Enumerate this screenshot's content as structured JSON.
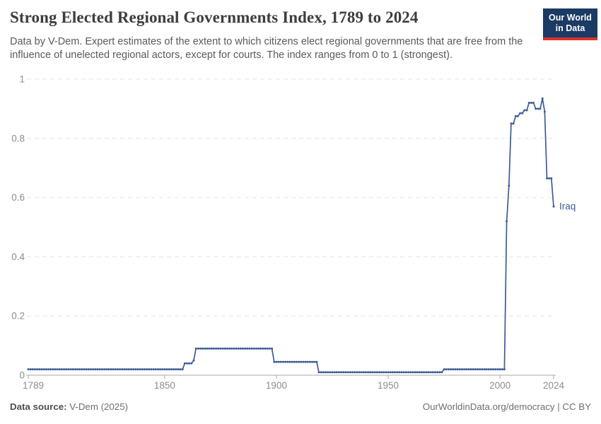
{
  "header": {
    "title": "Strong Elected Regional Governments Index, 1789 to 2024",
    "subtitle": "Data by V-Dem. Expert estimates of the extent to which citizens elect regional governments that are free from the influence of unelected regional actors, except for courts. The index ranges from 0 to 1 (strongest).",
    "logo": {
      "line1": "Our World",
      "line2": "in Data"
    }
  },
  "footer": {
    "source_label": "Data source:",
    "source_value": " V-Dem (2025)",
    "link": "OurWorldinData.org/democracy | CC BY"
  },
  "colors": {
    "line": "#3e5c95",
    "logo_bg": "#1b3a64",
    "logo_bar": "#d7352b",
    "grid": "#e4e4e4",
    "axis": "#a8a8a8",
    "tick_label": "#8c8c8c"
  },
  "chart_data": {
    "type": "line",
    "title": "Strong Elected Regional Governments Index, 1789 to 2024",
    "xlabel": "",
    "ylabel": "",
    "xlim": [
      1789,
      2024
    ],
    "ylim": [
      0,
      1
    ],
    "grid": "horizontal-dashed",
    "legend_position": "end-of-line-label",
    "x_ticks": [
      1789,
      1850,
      1900,
      1950,
      2000,
      2024
    ],
    "y_ticks": [
      {
        "value": 0,
        "label": "0"
      },
      {
        "value": 0.2,
        "label": "0.2"
      },
      {
        "value": 0.4,
        "label": "0.4"
      },
      {
        "value": 0.6,
        "label": "0.6"
      },
      {
        "value": 0.8,
        "label": "0.8"
      },
      {
        "value": 1,
        "label": "1"
      }
    ],
    "line_color": "#3e5c95",
    "series": [
      {
        "name": "Iraq",
        "segments": [
          {
            "from": 1789,
            "to": 1858,
            "value": 0.02
          },
          {
            "from": 1859,
            "to": 1862,
            "value": 0.04
          },
          {
            "from": 1863,
            "to": 1863,
            "value": 0.05
          },
          {
            "from": 1864,
            "to": 1898,
            "value": 0.09
          },
          {
            "from": 1899,
            "to": 1918,
            "value": 0.045
          },
          {
            "from": 1919,
            "to": 1974,
            "value": 0.01
          },
          {
            "from": 1975,
            "to": 2002,
            "value": 0.02
          },
          {
            "from": 2003,
            "to": 2003,
            "value": 0.52
          },
          {
            "from": 2004,
            "to": 2004,
            "value": 0.64
          },
          {
            "from": 2005,
            "to": 2006,
            "value": 0.85
          },
          {
            "from": 2007,
            "to": 2008,
            "value": 0.875
          },
          {
            "from": 2009,
            "to": 2010,
            "value": 0.885
          },
          {
            "from": 2011,
            "to": 2012,
            "value": 0.895
          },
          {
            "from": 2013,
            "to": 2015,
            "value": 0.92
          },
          {
            "from": 2016,
            "to": 2018,
            "value": 0.9
          },
          {
            "from": 2019,
            "to": 2019,
            "value": 0.935
          },
          {
            "from": 2020,
            "to": 2020,
            "value": 0.89
          },
          {
            "from": 2021,
            "to": 2023,
            "value": 0.665
          },
          {
            "from": 2024,
            "to": 2024,
            "value": 0.57
          }
        ]
      }
    ]
  }
}
